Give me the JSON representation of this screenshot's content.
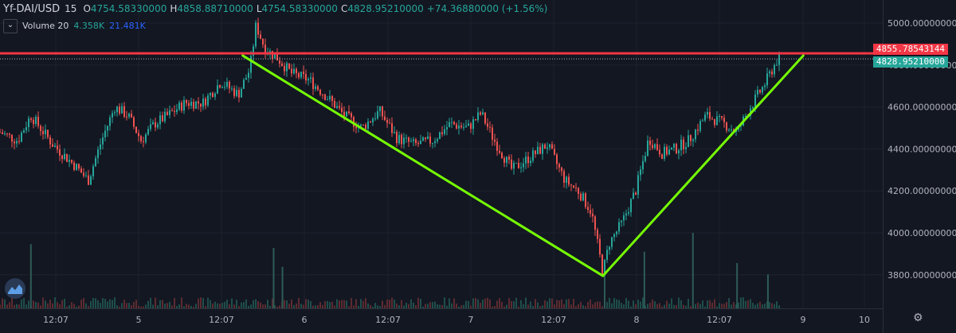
{
  "legend": {
    "symbol": "Yf-DAI/USD",
    "interval": "15",
    "open_key": "O",
    "open": "4754.58330000",
    "high_key": "H",
    "high": "4858.88710000",
    "low_key": "L",
    "low": "4754.58330000",
    "close_key": "C",
    "close": "4828.95210000",
    "change": "+74.36880000 (+1.56%)"
  },
  "volume_legend": {
    "collapse_icon": "chevron-down-icon",
    "name": "Volume 20",
    "value1": "4.358K",
    "value2": "21.481K"
  },
  "badges": {
    "high_line_price": "4855.78543144",
    "last_price": "4828.95210000"
  },
  "colors": {
    "background": "#131722",
    "up": "#26a69a",
    "down": "#ef5350",
    "trendline": "#76ff03",
    "resistance": "#f23645"
  },
  "chart_data": {
    "type": "candlestick",
    "y_axis": {
      "ticks": [
        "5000.00000000",
        "4800.00000000",
        "4600.00000000",
        "4400.00000000",
        "4200.00000000",
        "4000.00000000",
        "3800.00000000"
      ],
      "tick_values": [
        5000,
        4800,
        4600,
        4400,
        4200,
        4000,
        3800
      ],
      "range": [
        3640,
        5110
      ]
    },
    "x_axis": {
      "ticks": [
        "12:07",
        "5",
        "12:07",
        "6",
        "12:07",
        "7",
        "12:07",
        "8",
        "12:07",
        "9",
        "10"
      ]
    },
    "price_path": [
      {
        "x": 0,
        "y": 4480
      },
      {
        "x": 0.02,
        "y": 4440
      },
      {
        "x": 0.035,
        "y": 4560
      },
      {
        "x": 0.06,
        "y": 4420
      },
      {
        "x": 0.085,
        "y": 4320
      },
      {
        "x": 0.1,
        "y": 4250
      },
      {
        "x": 0.115,
        "y": 4440
      },
      {
        "x": 0.13,
        "y": 4600
      },
      {
        "x": 0.145,
        "y": 4560
      },
      {
        "x": 0.16,
        "y": 4440
      },
      {
        "x": 0.175,
        "y": 4520
      },
      {
        "x": 0.19,
        "y": 4560
      },
      {
        "x": 0.21,
        "y": 4620
      },
      {
        "x": 0.23,
        "y": 4620
      },
      {
        "x": 0.25,
        "y": 4720
      },
      {
        "x": 0.27,
        "y": 4660
      },
      {
        "x": 0.283,
        "y": 4780
      },
      {
        "x": 0.29,
        "y": 4990
      },
      {
        "x": 0.3,
        "y": 4880
      },
      {
        "x": 0.315,
        "y": 4830
      },
      {
        "x": 0.33,
        "y": 4760
      },
      {
        "x": 0.35,
        "y": 4730
      },
      {
        "x": 0.37,
        "y": 4650
      },
      {
        "x": 0.39,
        "y": 4560
      },
      {
        "x": 0.41,
        "y": 4500
      },
      {
        "x": 0.43,
        "y": 4580
      },
      {
        "x": 0.45,
        "y": 4450
      },
      {
        "x": 0.47,
        "y": 4420
      },
      {
        "x": 0.49,
        "y": 4440
      },
      {
        "x": 0.51,
        "y": 4520
      },
      {
        "x": 0.53,
        "y": 4500
      },
      {
        "x": 0.545,
        "y": 4570
      },
      {
        "x": 0.56,
        "y": 4440
      },
      {
        "x": 0.58,
        "y": 4300
      },
      {
        "x": 0.6,
        "y": 4360
      },
      {
        "x": 0.62,
        "y": 4420
      },
      {
        "x": 0.64,
        "y": 4250
      },
      {
        "x": 0.655,
        "y": 4200
      },
      {
        "x": 0.67,
        "y": 4100
      },
      {
        "x": 0.683,
        "y": 3810
      },
      {
        "x": 0.69,
        "y": 3950
      },
      {
        "x": 0.705,
        "y": 4050
      },
      {
        "x": 0.72,
        "y": 4200
      },
      {
        "x": 0.735,
        "y": 4450
      },
      {
        "x": 0.75,
        "y": 4380
      },
      {
        "x": 0.765,
        "y": 4400
      },
      {
        "x": 0.78,
        "y": 4440
      },
      {
        "x": 0.8,
        "y": 4560
      },
      {
        "x": 0.82,
        "y": 4520
      },
      {
        "x": 0.835,
        "y": 4480
      },
      {
        "x": 0.85,
        "y": 4600
      },
      {
        "x": 0.865,
        "y": 4700
      },
      {
        "x": 0.88,
        "y": 4820
      },
      {
        "x": 0.885,
        "y": 4830
      }
    ],
    "volume_spikes": [
      {
        "x": 0.035,
        "v": 0.85
      },
      {
        "x": 0.31,
        "v": 0.8
      },
      {
        "x": 0.32,
        "v": 0.55
      },
      {
        "x": 0.685,
        "v": 0.5
      },
      {
        "x": 0.73,
        "v": 0.75
      },
      {
        "x": 0.785,
        "v": 1.0
      },
      {
        "x": 0.835,
        "v": 0.6
      },
      {
        "x": 0.87,
        "v": 0.45
      }
    ],
    "trendlines": [
      {
        "from": {
          "x": 0.275,
          "y": 4845
        },
        "to": {
          "x": 0.683,
          "y": 3795
        }
      },
      {
        "from": {
          "x": 0.683,
          "y": 3795
        },
        "to": {
          "x": 0.91,
          "y": 4845
        }
      }
    ],
    "horizontal_lines": [
      {
        "y": 4855.78543144,
        "style": "solid"
      },
      {
        "y": 4828.9521,
        "style": "dotted"
      }
    ]
  }
}
